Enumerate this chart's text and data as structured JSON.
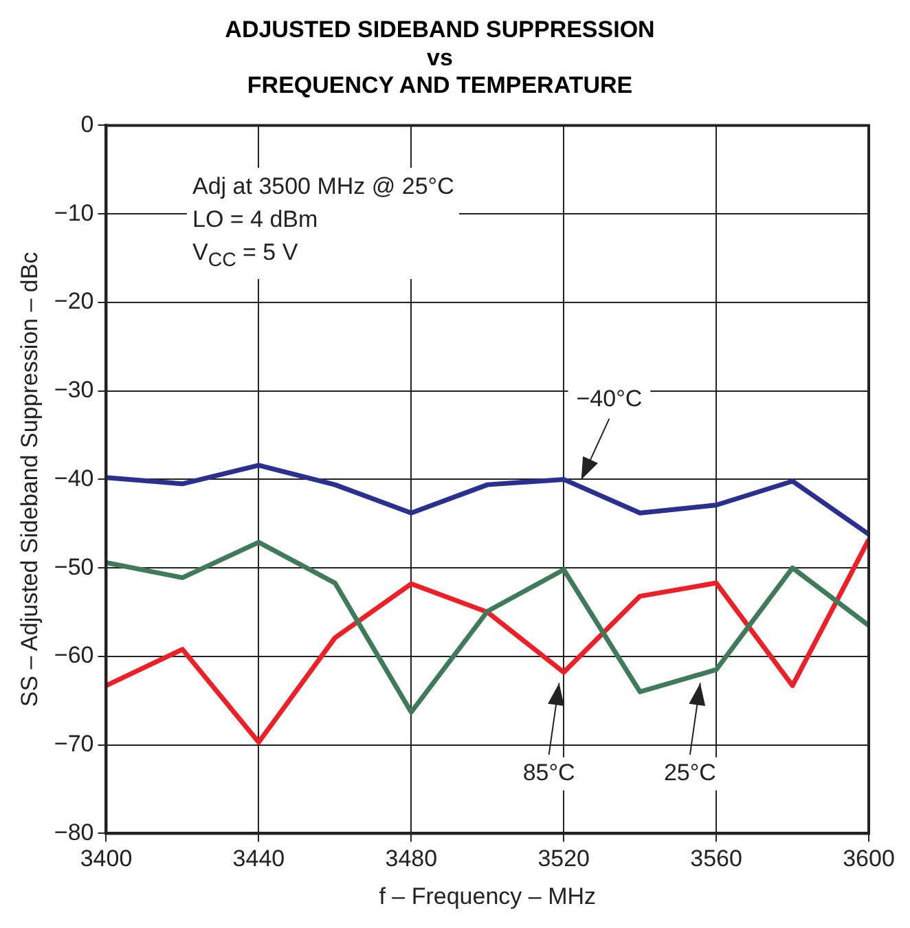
{
  "chart_data": {
    "type": "line",
    "title": "ADJUSTED SIDEBAND SUPPRESSION\nvs\nFREQUENCY AND TEMPERATURE",
    "xlabel": "f – Frequency – MHz",
    "ylabel": "SS – Adjusted Sideband Suppression – dBc",
    "x": [
      3400,
      3420,
      3440,
      3460,
      3480,
      3500,
      3520,
      3540,
      3560,
      3580,
      3600
    ],
    "series": [
      {
        "color": "#2b2f8f",
        "values": [
          -39.8,
          -40.5,
          -38.4,
          -40.6,
          -43.8,
          -40.6,
          -40,
          -43.8,
          -42.9,
          -40.2,
          -46.2
        ]
      },
      {
        "color": "#3f7a5a",
        "values": [
          -49.4,
          -51.1,
          -47.1,
          -51.7,
          -66.3,
          -54.9,
          -50.2,
          -64,
          -61.5,
          -50,
          -56.5
        ]
      },
      {
        "color": "#ee2027",
        "values": [
          -63.3,
          -59.2,
          -69.7,
          -57.9,
          -51.8,
          -55,
          -61.8,
          -53.2,
          -51.7,
          -63.3,
          -46.8
        ]
      }
    ],
    "xlim": [
      3400,
      3600
    ],
    "xticks": [
      3400,
      3440,
      3480,
      3520,
      3560,
      3600
    ],
    "ylim": [
      -80,
      0
    ],
    "yticks": [
      0,
      {
        "value": -10,
        "label": "−10"
      },
      {
        "value": -20,
        "label": "−20"
      },
      {
        "value": -30,
        "label": "−30"
      },
      {
        "value": -40,
        "label": "−40"
      },
      {
        "value": -50,
        "label": "−50"
      },
      {
        "value": -60,
        "label": "−60"
      },
      {
        "value": -70,
        "label": "−70"
      },
      {
        "value": -80,
        "label": "−80"
      }
    ],
    "grid": true,
    "legend": false,
    "marker": "none",
    "line_style": "solid",
    "annotations": [
      "Adj at 3500 MHz @ 25°C",
      "LO = 4 dBm",
      "V$_{CC}$ =  5 V",
      {
        "text": "−40°C",
        "x": 3524,
        "y": -40.6
      },
      {
        "text": "85°C",
        "x": 3519,
        "y": -62.4
      },
      {
        "text": "25°C",
        "x": 3556,
        "y": -62.4
      }
    ]
  }
}
